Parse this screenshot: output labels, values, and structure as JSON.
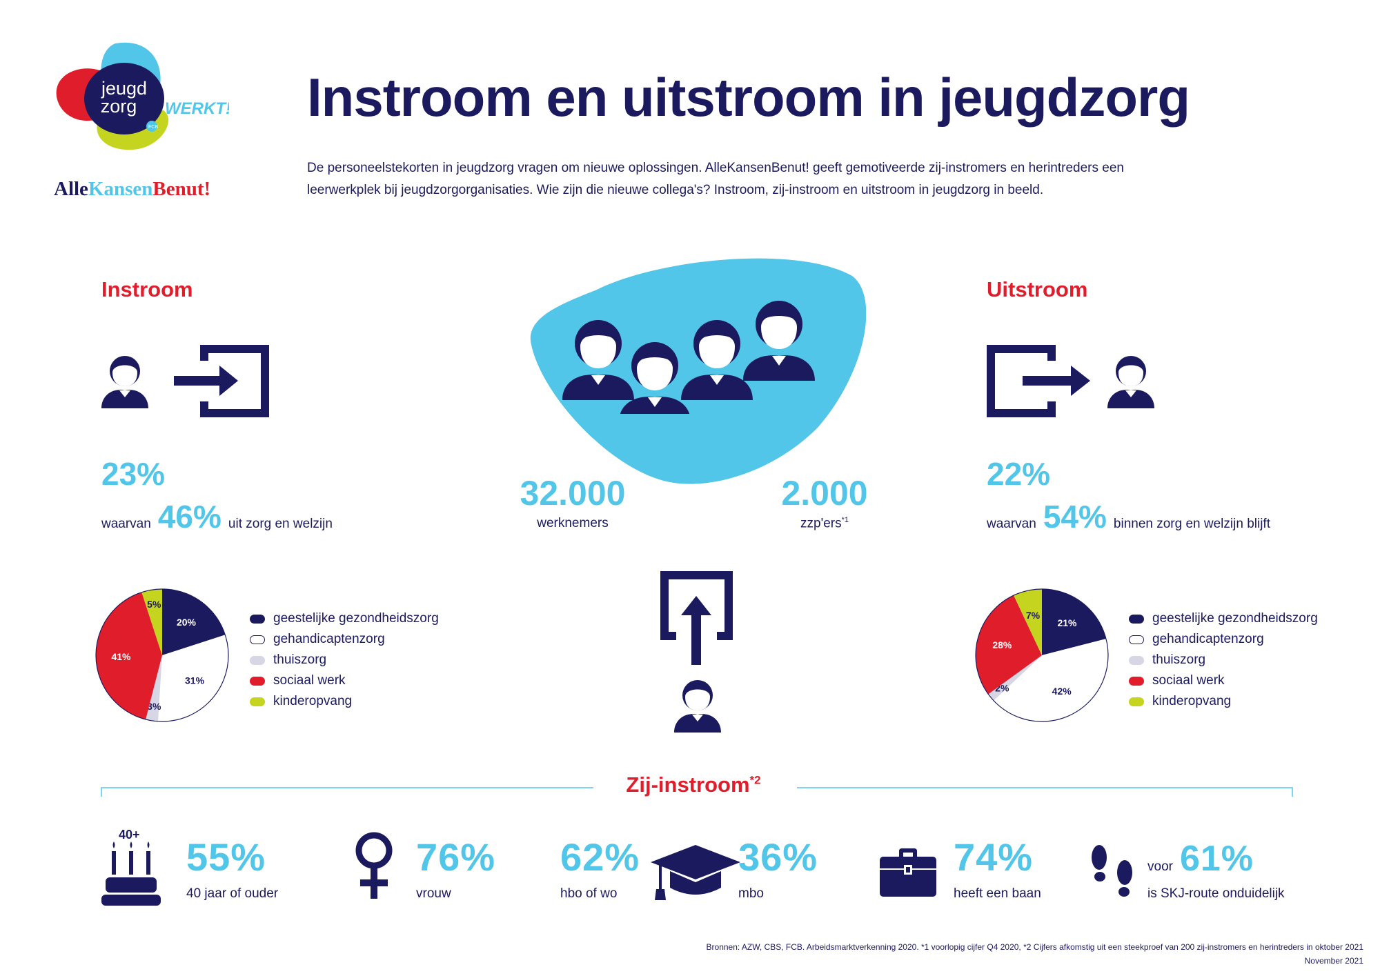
{
  "brand": {
    "logo_text_line1": "jeugd",
    "logo_text_line2": "zorg",
    "logo_werkt": "WERKT!",
    "logo_badge": "FCB",
    "alle": "Alle",
    "kansen": "Kansen",
    "benut": "Benut!"
  },
  "title": "Instroom en uitstroom in jeugdzorg",
  "intro_line1": "De personeelstekorten in jeugdzorg vragen om nieuwe oplossingen. AlleKansenBenut! geeft gemotiveerde zij-instromers en herintreders een",
  "intro_line2": "leerwerkplek bij jeugdzorgorganisaties. Wie zijn die nieuwe collega's? Instroom, zij-instroom en uitstroom in jeugdzorg in beeld.",
  "instroom": {
    "heading": "Instroom",
    "pct": "23%",
    "waarvan": "waarvan",
    "sub_pct": "46%",
    "sub_text": "uit zorg en welzijn"
  },
  "uitstroom": {
    "heading": "Uitstroom",
    "pct": "22%",
    "waarvan": "waarvan",
    "sub_pct": "54%",
    "sub_text": "binnen zorg en welzijn blijft"
  },
  "center": {
    "employees_num": "32.000",
    "employees_lbl": "werknemers",
    "zzp_num": "2.000",
    "zzp_lbl": "zzp'ers",
    "zzp_note": "*1"
  },
  "legend": {
    "items": [
      "geestelijke gezondheidszorg",
      "gehandicaptenzorg",
      "thuiszorg",
      "sociaal werk",
      "kinderopvang"
    ]
  },
  "colors": {
    "navy": "#1b1a5e",
    "white": "#ffffff",
    "light_grey": "#d6d6e4",
    "red": "#e01e2b",
    "lime": "#c5d41f",
    "cyan": "#52c6e8"
  },
  "chart_data": [
    {
      "type": "pie",
      "title": "Instroom",
      "categories": [
        "geestelijke gezondheidszorg",
        "gehandicaptenzorg",
        "thuiszorg",
        "sociaal werk",
        "kinderopvang"
      ],
      "values": [
        20,
        31,
        3,
        41,
        5
      ],
      "labels": [
        "20%",
        "31%",
        "3%",
        "41%",
        "5%"
      ],
      "colors": [
        "#1b1a5e",
        "#ffffff",
        "#d6d6e4",
        "#e01e2b",
        "#c5d41f"
      ],
      "legend": "right"
    },
    {
      "type": "pie",
      "title": "Uitstroom",
      "categories": [
        "geestelijke gezondheidszorg",
        "gehandicaptenzorg",
        "thuiszorg",
        "sociaal werk",
        "kinderopvang"
      ],
      "values": [
        21,
        42,
        2,
        28,
        7
      ],
      "labels": [
        "21%",
        "42%",
        "2%",
        "28%",
        "7%"
      ],
      "colors": [
        "#1b1a5e",
        "#ffffff",
        "#d6d6e4",
        "#e01e2b",
        "#c5d41f"
      ],
      "legend": "right"
    }
  ],
  "zij": {
    "heading": "Zij-instroom",
    "note": "*2",
    "age_badge": "40+",
    "stats": [
      {
        "num": "55%",
        "label": "40 jaar of ouder",
        "icon": "birthday-cake-icon"
      },
      {
        "num": "76%",
        "label": "vrouw",
        "icon": "female-symbol-icon"
      },
      {
        "num": "62%",
        "label": "hbo of wo",
        "icon": "graduation-cap-icon"
      },
      {
        "num": "36%",
        "label": "mbo",
        "icon": "graduation-cap-icon"
      },
      {
        "num": "74%",
        "label": "heeft een baan",
        "icon": "briefcase-icon"
      },
      {
        "num": "61%",
        "prefix": "voor",
        "label": "is SKJ-route onduidelijk",
        "icon": "footprints-icon"
      }
    ]
  },
  "footer": {
    "sources": "Bronnen: AZW, CBS, FCB. Arbeidsmarktverkenning 2020. *1 voorlopig cijfer Q4 2020, *2 Cijfers afkomstig uit een steekproef van 200 zij-instromers en herintreders in oktober 2021",
    "date": "November 2021"
  }
}
